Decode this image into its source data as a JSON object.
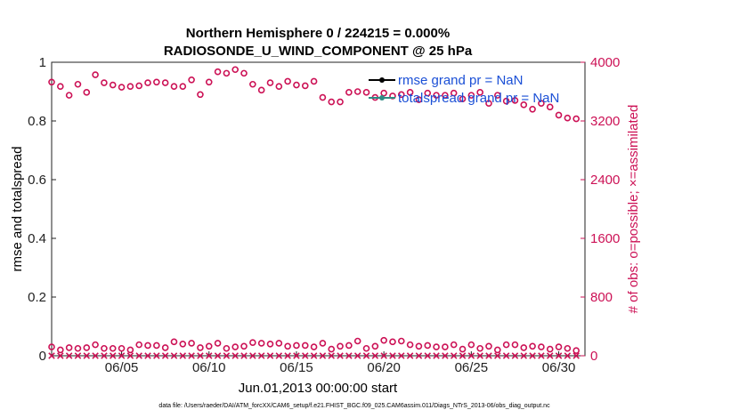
{
  "chart_data": {
    "type": "scatter",
    "title": [
      "Northern Hemisphere 0 / 224215 = 0.000%",
      "RADIOSONDE_U_WIND_COMPONENT @ 25 hPa"
    ],
    "xlabel": "Jun.01,2013 00:00:00 start",
    "ylabel_left": "rmse and totalspread",
    "ylabel_right": "# of obs: o=possible; ×=assimilated",
    "ylim_left": [
      0,
      1
    ],
    "ylim_right": [
      0,
      4000
    ],
    "xlim": [
      1,
      31.5
    ],
    "left_ticks": [
      0,
      0.2,
      0.4,
      0.6,
      0.8,
      1
    ],
    "left_tick_labels": [
      "0",
      "0.2",
      "0.4",
      "0.6",
      "0.8",
      "1"
    ],
    "right_ticks": [
      0,
      800,
      1600,
      2400,
      3200,
      4000
    ],
    "right_tick_labels": [
      "0",
      "800",
      "1600",
      "2400",
      "3200",
      "4000"
    ],
    "x_ticks": [
      5,
      10,
      15,
      20,
      25,
      30
    ],
    "x_tick_labels": [
      "06/05",
      "06/10",
      "06/15",
      "06/20",
      "06/25",
      "06/30"
    ],
    "grid": false,
    "legend_position": "top-right",
    "legend": [
      {
        "label": "rmse grand pr = NaN",
        "color": "#000000"
      },
      {
        "label": "totalspread grand pr = NaN",
        "color": "#2e8b84"
      }
    ],
    "series": [
      {
        "name": "possible",
        "marker": "o",
        "color": "#cc1155",
        "axis": "right",
        "x": [
          1.0,
          1.5,
          2.0,
          2.5,
          3.0,
          3.5,
          4.0,
          4.5,
          5.0,
          5.5,
          6.0,
          6.5,
          7.0,
          7.5,
          8.0,
          8.5,
          9.0,
          9.5,
          10.0,
          10.5,
          11.0,
          11.5,
          12.0,
          12.5,
          13.0,
          13.5,
          14.0,
          14.5,
          15.0,
          15.5,
          16.0,
          16.5,
          17.0,
          17.5,
          18.0,
          18.5,
          19.0,
          19.5,
          20.0,
          20.5,
          21.0,
          21.5,
          22.0,
          22.5,
          23.0,
          23.5,
          24.0,
          24.5,
          25.0,
          25.5,
          26.0,
          26.5,
          27.0,
          27.5,
          28.0,
          28.5,
          29.0,
          29.5,
          30.0,
          30.5,
          31.0
        ],
        "y": [
          3730,
          3670,
          3550,
          3700,
          3590,
          3830,
          3720,
          3690,
          3660,
          3670,
          3680,
          3720,
          3730,
          3720,
          3670,
          3670,
          3760,
          3560,
          3730,
          3870,
          3850,
          3900,
          3850,
          3700,
          3620,
          3720,
          3670,
          3740,
          3690,
          3680,
          3740,
          3520,
          3460,
          3460,
          3590,
          3600,
          3590,
          3520,
          3580,
          3540,
          3560,
          3590,
          3490,
          3580,
          3550,
          3550,
          3580,
          3500,
          3550,
          3590,
          3440,
          3550,
          3470,
          3480,
          3420,
          3360,
          3440,
          3390,
          3280,
          3240,
          3230
        ]
      },
      {
        "name": "possible (low)",
        "marker": "o",
        "color": "#cc1155",
        "axis": "right",
        "x": [
          1.0,
          1.5,
          2.0,
          2.5,
          3.0,
          3.5,
          4.0,
          4.5,
          5.0,
          5.5,
          6.0,
          6.5,
          7.0,
          7.5,
          8.0,
          8.5,
          9.0,
          9.5,
          10.0,
          10.5,
          11.0,
          11.5,
          12.0,
          12.5,
          13.0,
          13.5,
          14.0,
          14.5,
          15.0,
          15.5,
          16.0,
          16.5,
          17.0,
          17.5,
          18.0,
          18.5,
          19.0,
          19.5,
          20.0,
          20.5,
          21.0,
          21.5,
          22.0,
          22.5,
          23.0,
          23.5,
          24.0,
          24.5,
          25.0,
          25.5,
          26.0,
          26.5,
          27.0,
          27.5,
          28.0,
          28.5,
          29.0,
          29.5,
          30.0,
          30.5,
          31.0
        ],
        "y": [
          120,
          80,
          110,
          100,
          110,
          150,
          100,
          100,
          100,
          80,
          150,
          140,
          140,
          110,
          190,
          160,
          170,
          110,
          130,
          170,
          100,
          120,
          130,
          180,
          170,
          160,
          170,
          130,
          140,
          140,
          120,
          170,
          90,
          130,
          140,
          200,
          100,
          130,
          210,
          190,
          200,
          150,
          130,
          140,
          120,
          120,
          150,
          90,
          150,
          100,
          130,
          80,
          150,
          150,
          110,
          130,
          120,
          90,
          120,
          100,
          70
        ]
      },
      {
        "name": "assimilated",
        "marker": "x",
        "color": "#cc1155",
        "axis": "right",
        "x": [
          1.0,
          1.5,
          2.0,
          2.5,
          3.0,
          3.5,
          4.0,
          4.5,
          5.0,
          5.5,
          6.0,
          6.5,
          7.0,
          7.5,
          8.0,
          8.5,
          9.0,
          9.5,
          10.0,
          10.5,
          11.0,
          11.5,
          12.0,
          12.5,
          13.0,
          13.5,
          14.0,
          14.5,
          15.0,
          15.5,
          16.0,
          16.5,
          17.0,
          17.5,
          18.0,
          18.5,
          19.0,
          19.5,
          20.0,
          20.5,
          21.0,
          21.5,
          22.0,
          22.5,
          23.0,
          23.5,
          24.0,
          24.5,
          25.0,
          25.5,
          26.0,
          26.5,
          27.0,
          27.5,
          28.0,
          28.5,
          29.0,
          29.5,
          30.0,
          30.5,
          31.0
        ],
        "y": [
          0,
          0,
          0,
          0,
          0,
          0,
          0,
          0,
          0,
          0,
          0,
          0,
          0,
          0,
          0,
          0,
          0,
          0,
          0,
          0,
          0,
          0,
          0,
          0,
          0,
          0,
          0,
          0,
          0,
          0,
          0,
          0,
          0,
          0,
          0,
          0,
          0,
          0,
          0,
          0,
          0,
          0,
          0,
          0,
          0,
          0,
          0,
          0,
          0,
          0,
          0,
          0,
          0,
          0,
          0,
          0,
          0,
          0,
          0,
          0,
          0
        ]
      }
    ]
  },
  "footer": "data file: /Users/raeder/DAI/ATM_forcXX/CAM6_setup/f.e21.FHIST_BGC.f09_025.CAM6assim.011/Diags_NTrS_2013-06/obs_diag_output.nc"
}
